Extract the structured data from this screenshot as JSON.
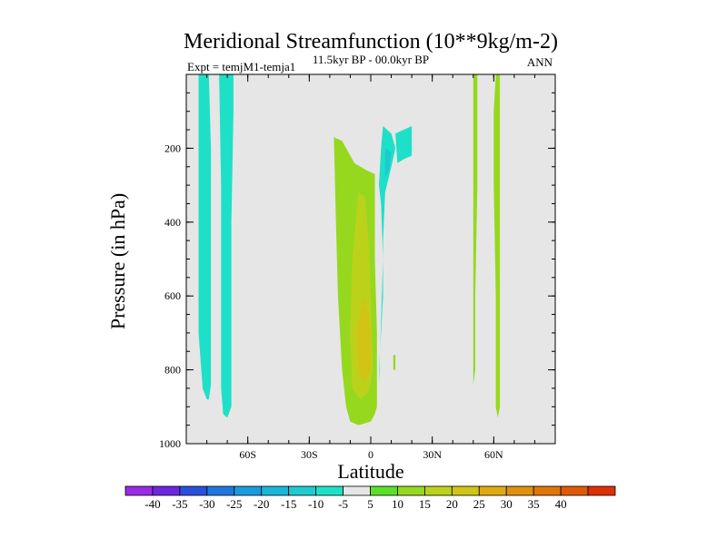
{
  "chart_data": {
    "type": "contour",
    "title": "Meridional Streamfunction (10**9kg/m-2)",
    "subtitle_left": "Expt = temjM1-temja1",
    "subtitle_center": "11.5kyr BP - 00.0kyr BP",
    "subtitle_right": "ANN",
    "xlabel": "Latitude",
    "ylabel": "Pressure (in hPa)",
    "x_range": [
      -90,
      90
    ],
    "y_range": [
      0,
      1000
    ],
    "y_inverted": true,
    "x_ticks": [
      {
        "value": -60,
        "label": "60S"
      },
      {
        "value": -30,
        "label": "30S"
      },
      {
        "value": 0,
        "label": "0"
      },
      {
        "value": 30,
        "label": "30N"
      },
      {
        "value": 60,
        "label": "60N"
      }
    ],
    "y_ticks": [
      {
        "value": 200,
        "label": "200"
      },
      {
        "value": 400,
        "label": "400"
      },
      {
        "value": 600,
        "label": "600"
      },
      {
        "value": 800,
        "label": "800"
      },
      {
        "value": 1000,
        "label": "1000"
      }
    ],
    "background_color": "#e6e6e6",
    "colorbar": {
      "colors": [
        "#9a2ae6",
        "#6b26e0",
        "#2a4fdc",
        "#1f78e0",
        "#1a9be0",
        "#19b6d8",
        "#1ccbd0",
        "#1ee0c8",
        "#e6e6e6",
        "#5ae02a",
        "#96d81e",
        "#bcd21a",
        "#d2c414",
        "#deaa10",
        "#e0900c",
        "#e07608",
        "#e05a06",
        "#de3004"
      ],
      "labels": [
        "-40",
        "-35",
        "-30",
        "-25",
        "-20",
        "-15",
        "-10",
        "-5",
        "5",
        "10",
        "15",
        "20",
        "25",
        "30",
        "35",
        "40"
      ]
    },
    "regions": [
      {
        "value_class": "-5",
        "color": "#1ee0c8",
        "lat_pressure": [
          [
            -84,
            0
          ],
          [
            -79,
            0
          ],
          [
            -78,
            200
          ],
          [
            -78,
            500
          ],
          [
            -78,
            700
          ],
          [
            -78,
            840
          ],
          [
            -79,
            880
          ],
          [
            -80,
            880
          ],
          [
            -82,
            850
          ],
          [
            -84,
            700
          ],
          [
            -84,
            400
          ]
        ]
      },
      {
        "value_class": "-5",
        "color": "#1ee0c8",
        "lat_pressure": [
          [
            -78,
            0
          ],
          [
            -74,
            0
          ],
          [
            -73,
            300
          ],
          [
            -73,
            600
          ],
          [
            -73,
            850
          ],
          [
            -72,
            920
          ],
          [
            -70,
            930
          ],
          [
            -68,
            900
          ],
          [
            -68,
            700
          ],
          [
            -68,
            400
          ],
          [
            -67,
            100
          ],
          [
            -67,
            0
          ],
          [
            -73,
            0
          ]
        ]
      },
      {
        "value_class": "10",
        "color": "#96d81e",
        "lat_pressure": [
          [
            -18,
            170
          ],
          [
            -14,
            180
          ],
          [
            -8,
            240
          ],
          [
            -2,
            260
          ],
          [
            2,
            270
          ],
          [
            2,
            500
          ],
          [
            3,
            700
          ],
          [
            3,
            900
          ],
          [
            2,
            920
          ],
          [
            0,
            940
          ],
          [
            -6,
            950
          ],
          [
            -10,
            940
          ],
          [
            -12,
            900
          ],
          [
            -14,
            800
          ],
          [
            -16,
            600
          ],
          [
            -17,
            400
          ]
        ]
      },
      {
        "value_class": "15",
        "color": "#bcd21a",
        "lat_pressure": [
          [
            -6,
            320
          ],
          [
            -3,
            330
          ],
          [
            -1,
            450
          ],
          [
            0,
            600
          ],
          [
            1,
            800
          ],
          [
            -1,
            860
          ],
          [
            -5,
            880
          ],
          [
            -9,
            850
          ],
          [
            -10,
            700
          ],
          [
            -9,
            500
          ]
        ]
      },
      {
        "value_class": "20",
        "color": "#d2c414",
        "lat_pressure": [
          [
            -4,
            600
          ],
          [
            -1,
            640
          ],
          [
            0,
            720
          ],
          [
            0,
            800
          ],
          [
            -3,
            830
          ],
          [
            -6,
            810
          ],
          [
            -7,
            700
          ]
        ]
      },
      {
        "value_class": "-5",
        "color": "#1ee0c8",
        "lat_pressure": [
          [
            6,
            140
          ],
          [
            10,
            160
          ],
          [
            12,
            200
          ],
          [
            10,
            250
          ],
          [
            7,
            320
          ],
          [
            6,
            450
          ],
          [
            6,
            600
          ],
          [
            5,
            700
          ],
          [
            4,
            800
          ],
          [
            4,
            840
          ],
          [
            6,
            500
          ],
          [
            5,
            350
          ],
          [
            4,
            300
          ],
          [
            5,
            200
          ]
        ]
      },
      {
        "value_class": "-5",
        "color": "#1ee0c8",
        "lat_pressure": [
          [
            12,
            160
          ],
          [
            20,
            140
          ],
          [
            20,
            220
          ],
          [
            16,
            230
          ],
          [
            13,
            240
          ]
        ]
      },
      {
        "value_class": "-10",
        "color": "#1ccbd0",
        "lat_pressure": [
          [
            7,
            200
          ],
          [
            10,
            210
          ],
          [
            9,
            260
          ],
          [
            7,
            280
          ]
        ]
      },
      {
        "value_class": "10",
        "color": "#96d81e",
        "lat_pressure": [
          [
            50,
            0
          ],
          [
            52,
            0
          ],
          [
            52,
            300
          ],
          [
            51,
            600
          ],
          [
            51,
            800
          ],
          [
            50,
            840
          ],
          [
            50,
            600
          ],
          [
            50,
            300
          ]
        ]
      },
      {
        "value_class": "10",
        "color": "#96d81e",
        "lat_pressure": [
          [
            61,
            0
          ],
          [
            63,
            0
          ],
          [
            63,
            300
          ],
          [
            63,
            600
          ],
          [
            63,
            900
          ],
          [
            62,
            930
          ],
          [
            61,
            900
          ],
          [
            61,
            600
          ],
          [
            60,
            300
          ],
          [
            60,
            100
          ]
        ]
      },
      {
        "value_class": "10",
        "color": "#96d81e",
        "lat_pressure": [
          [
            11,
            760
          ],
          [
            12,
            760
          ],
          [
            12,
            800
          ],
          [
            11,
            800
          ]
        ]
      }
    ]
  }
}
